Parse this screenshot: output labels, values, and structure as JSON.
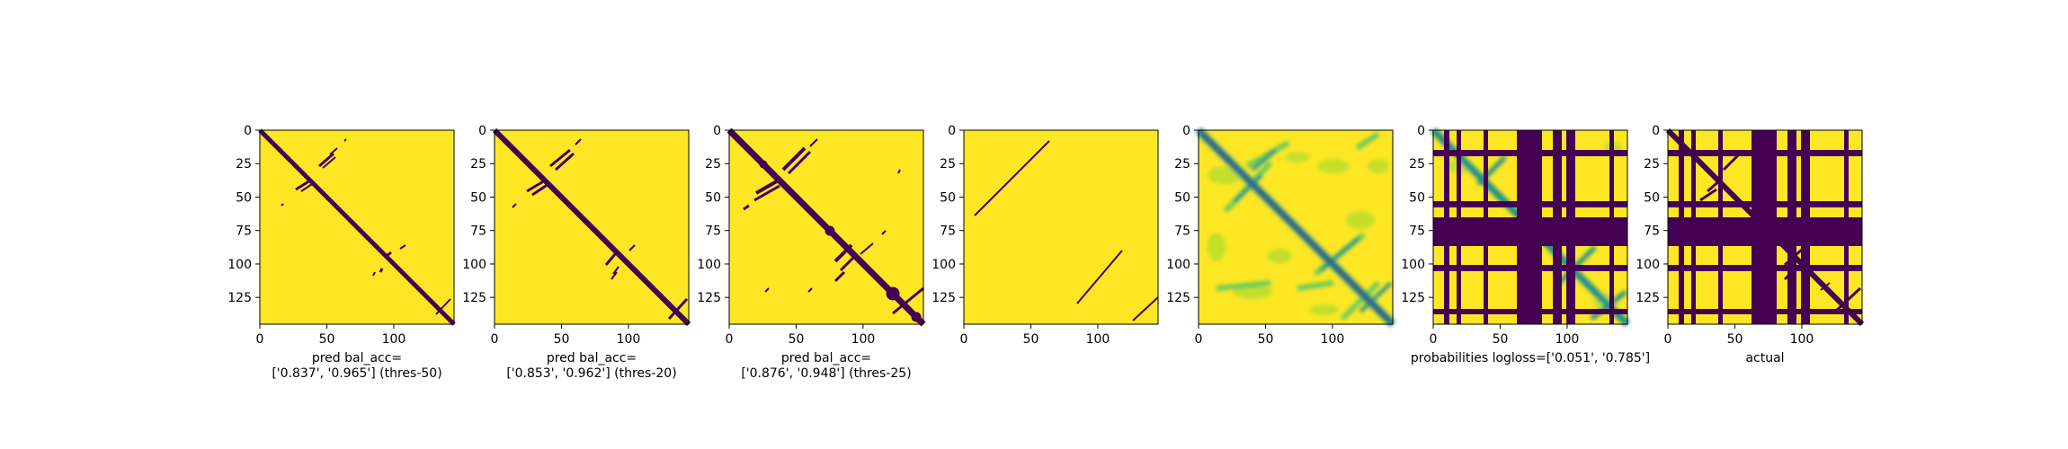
{
  "colors": {
    "yellow": "#fde725",
    "purple": "#440154",
    "teal": "#21918c",
    "green": "#5ec962",
    "lightgreen": "#b5de2b",
    "blue": "#3b528b",
    "axis": "#000000"
  },
  "chart_data": [
    {
      "type": "heatmap",
      "panel": 1,
      "xticks": [
        0,
        50,
        100
      ],
      "yticks": [
        0,
        25,
        50,
        75,
        100,
        125
      ],
      "xlim": [
        0,
        145
      ],
      "ylim": [
        145,
        0
      ],
      "xlabel": [
        "pred bal_acc=",
        "['0.837', '0.965'] (thres-50)"
      ]
    },
    {
      "type": "heatmap",
      "panel": 2,
      "xticks": [
        0,
        50,
        100
      ],
      "yticks": [
        0,
        25,
        50,
        75,
        100,
        125
      ],
      "xlim": [
        0,
        145
      ],
      "ylim": [
        145,
        0
      ],
      "xlabel": [
        "pred bal_acc=",
        "['0.853', '0.962'] (thres-20)"
      ]
    },
    {
      "type": "heatmap",
      "panel": 3,
      "xticks": [
        0,
        50,
        100
      ],
      "yticks": [
        0,
        25,
        50,
        75,
        100,
        125
      ],
      "xlim": [
        0,
        145
      ],
      "ylim": [
        145,
        0
      ],
      "xlabel": [
        "pred bal_acc=",
        "['0.876', '0.948'] (thres-25)"
      ]
    },
    {
      "type": "heatmap",
      "panel": 4,
      "xticks": [
        0,
        50,
        100
      ],
      "yticks": [
        0,
        25,
        50,
        75,
        100,
        125
      ],
      "xlim": [
        0,
        145
      ],
      "ylim": [
        145,
        0
      ],
      "xlabel": []
    },
    {
      "type": "heatmap",
      "panel": 5,
      "xticks": [
        0,
        50,
        100
      ],
      "yticks": [
        0,
        25,
        50,
        75,
        100,
        125
      ],
      "xlim": [
        0,
        145
      ],
      "ylim": [
        145,
        0
      ],
      "xlabel": []
    },
    {
      "type": "heatmap",
      "panel": 6,
      "xticks": [
        0,
        50,
        100
      ],
      "yticks": [
        0,
        25,
        50,
        75,
        100,
        125
      ],
      "xlim": [
        0,
        145
      ],
      "ylim": [
        145,
        0
      ],
      "xlabel": [
        "probabilities logloss=['0.051', '0.785']"
      ]
    },
    {
      "type": "heatmap",
      "panel": 7,
      "xticks": [
        0,
        50,
        100
      ],
      "yticks": [
        0,
        25,
        50,
        75,
        100,
        125
      ],
      "xlim": [
        0,
        145
      ],
      "ylim": [
        145,
        0
      ],
      "xlabel": [
        "actual"
      ]
    }
  ]
}
